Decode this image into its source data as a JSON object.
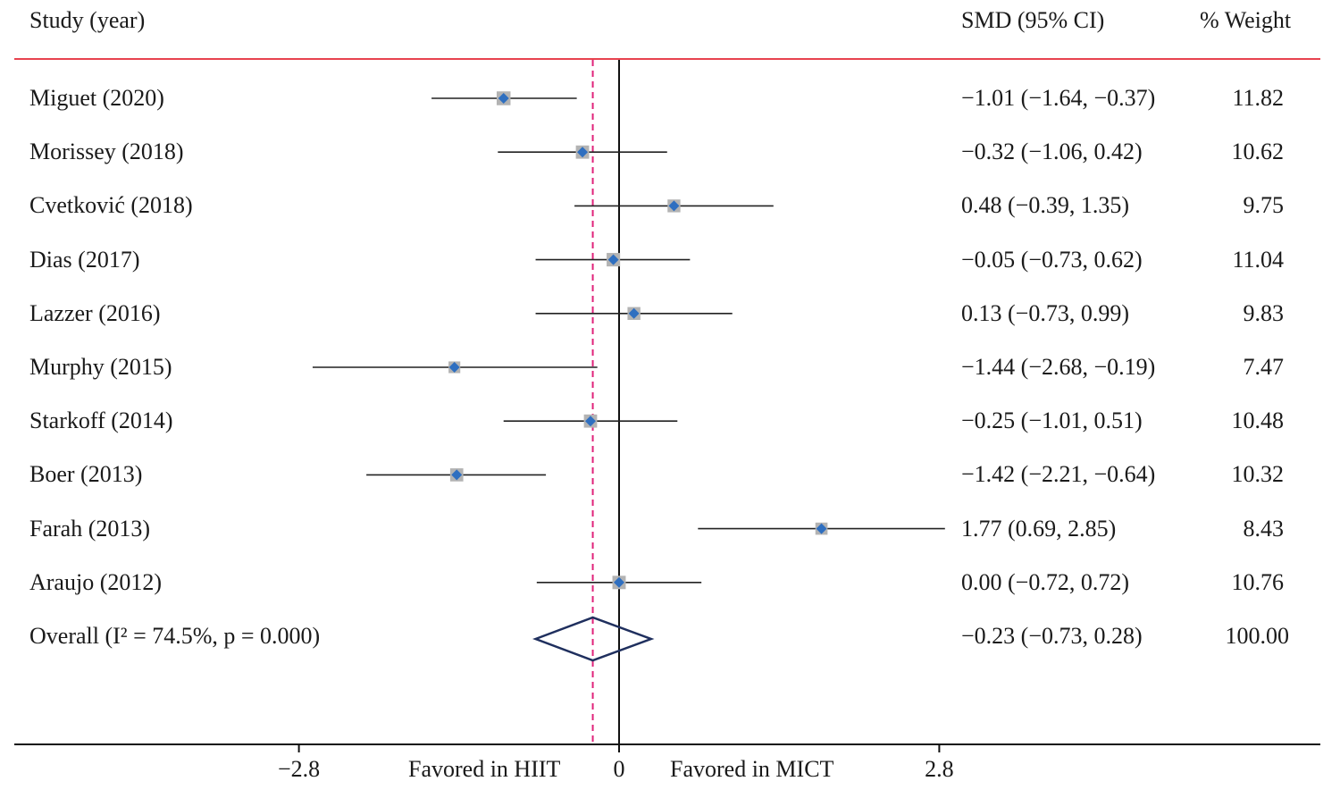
{
  "chart_data": {
    "type": "forest",
    "headers": {
      "study": "Study (year)",
      "smd": "SMD (95% CI)",
      "weight": "% Weight"
    },
    "xlim": [
      -2.8,
      2.8
    ],
    "ticks": [
      {
        "value": -2.8,
        "label": "−2.8"
      },
      {
        "value": 0,
        "label": "0"
      },
      {
        "value": 2.8,
        "label": "2.8"
      }
    ],
    "favored_left": "Favored in HIIT",
    "favored_right": "Favored in MICT",
    "studies": [
      {
        "label": "Miguet (2020)",
        "est": -1.01,
        "lo": -1.64,
        "hi": -0.37,
        "weight": 11.82,
        "ci_text": "−1.01 (−1.64, −0.37)",
        "weight_text": "11.82"
      },
      {
        "label": "Morissey (2018)",
        "est": -0.32,
        "lo": -1.06,
        "hi": 0.42,
        "weight": 10.62,
        "ci_text": "−0.32 (−1.06, 0.42)",
        "weight_text": "10.62"
      },
      {
        "label": "Cvetković (2018)",
        "est": 0.48,
        "lo": -0.39,
        "hi": 1.35,
        "weight": 9.75,
        "ci_text": "0.48 (−0.39, 1.35)",
        "weight_text": "9.75"
      },
      {
        "label": "Dias (2017)",
        "est": -0.05,
        "lo": -0.73,
        "hi": 0.62,
        "weight": 11.04,
        "ci_text": "−0.05 (−0.73, 0.62)",
        "weight_text": "11.04"
      },
      {
        "label": "Lazzer (2016)",
        "est": 0.13,
        "lo": -0.73,
        "hi": 0.99,
        "weight": 9.83,
        "ci_text": "0.13 (−0.73, 0.99)",
        "weight_text": "9.83"
      },
      {
        "label": "Murphy (2015)",
        "est": -1.44,
        "lo": -2.68,
        "hi": -0.19,
        "weight": 7.47,
        "ci_text": "−1.44 (−2.68, −0.19)",
        "weight_text": "7.47"
      },
      {
        "label": "Starkoff (2014)",
        "est": -0.25,
        "lo": -1.01,
        "hi": 0.51,
        "weight": 10.48,
        "ci_text": "−0.25 (−1.01, 0.51)",
        "weight_text": "10.48"
      },
      {
        "label": "Boer (2013)",
        "est": -1.42,
        "lo": -2.21,
        "hi": -0.64,
        "weight": 10.32,
        "ci_text": "−1.42 (−2.21, −0.64)",
        "weight_text": "10.32"
      },
      {
        "label": "Farah (2013)",
        "est": 1.77,
        "lo": 0.69,
        "hi": 2.85,
        "weight": 8.43,
        "ci_text": "1.77 (0.69, 2.85)",
        "weight_text": "8.43"
      },
      {
        "label": "Araujo (2012)",
        "est": 0.0,
        "lo": -0.72,
        "hi": 0.72,
        "weight": 10.76,
        "ci_text": "0.00 (−0.72, 0.72)",
        "weight_text": "10.76"
      }
    ],
    "overall": {
      "label": "Overall  (I² = 74.5%, p = 0.000)",
      "est": -0.23,
      "lo": -0.73,
      "hi": 0.28,
      "weight": 100.0,
      "ci_text": "−0.23 (−0.73, 0.28)",
      "weight_text": "100.00"
    }
  },
  "colors": {
    "header_rule": "#e8434f",
    "overall_line": "#e0227a",
    "diamond": "#1f2f5e",
    "marker_square": "#b3b3b3",
    "marker_point": "#2f6fc0",
    "axis": "#111111",
    "ci_line": "#222222"
  }
}
